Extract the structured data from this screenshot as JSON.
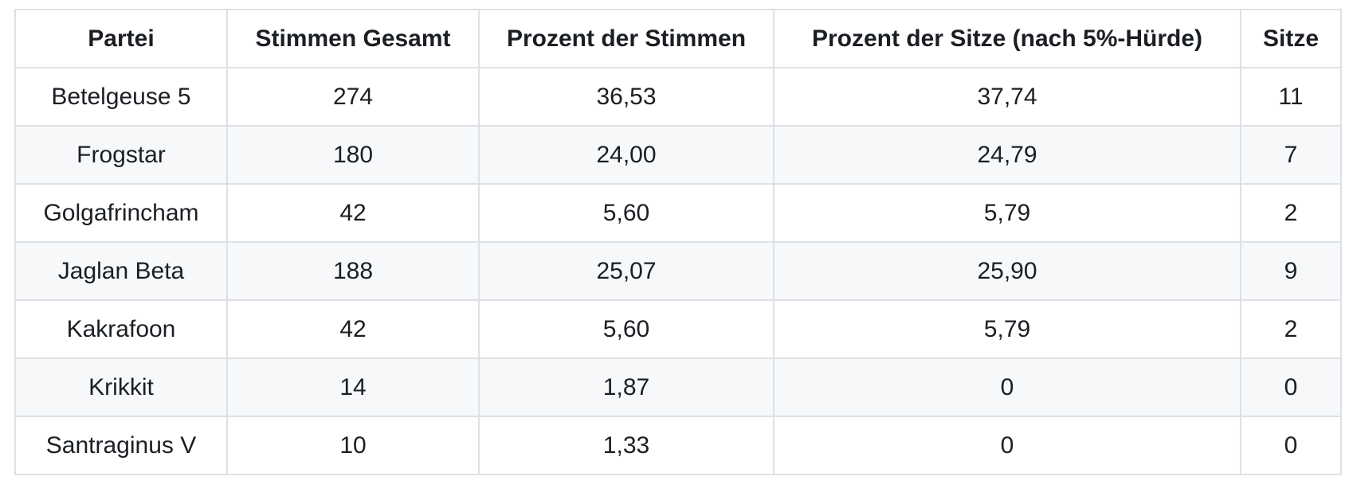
{
  "colors": {
    "background": "#ffffff",
    "text": "#1b1f23",
    "border": "#dde1e6",
    "stripe_row_bg": "#f6f8fa"
  },
  "table": {
    "columns": [
      "Partei",
      "Stimmen Gesamt",
      "Prozent der Stimmen",
      "Prozent der Sitze (nach 5%-Hürde)",
      "Sitze"
    ],
    "rows": [
      [
        "Betelgeuse 5",
        "274",
        "36,53",
        "37,74",
        "11"
      ],
      [
        "Frogstar",
        "180",
        "24,00",
        "24,79",
        "7"
      ],
      [
        "Golgafrincham",
        "42",
        "5,60",
        "5,79",
        "2"
      ],
      [
        "Jaglan Beta",
        "188",
        "25,07",
        "25,90",
        "9"
      ],
      [
        "Kakrafoon",
        "42",
        "5,60",
        "5,79",
        "2"
      ],
      [
        "Krikkit",
        "14",
        "1,87",
        "0",
        "0"
      ],
      [
        "Santraginus V",
        "10",
        "1,33",
        "0",
        "0"
      ]
    ]
  }
}
